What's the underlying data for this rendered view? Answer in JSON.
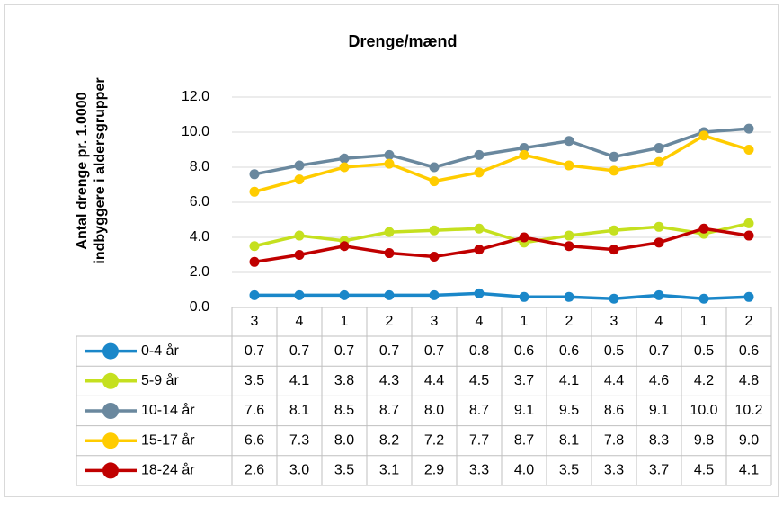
{
  "chart_data": {
    "type": "line",
    "title": "Drenge/mænd",
    "y_label": [
      "Antal drenge pr. 1.0000",
      "indbyggere i aldersgrupper"
    ],
    "categories": [
      "3",
      "4",
      "1",
      "2",
      "3",
      "4",
      "1",
      "2",
      "3",
      "4",
      "1",
      "2"
    ],
    "ylim": [
      0,
      12
    ],
    "yticks": [
      {
        "value": 0,
        "label": "0.0"
      },
      {
        "value": 2,
        "label": "2.0"
      },
      {
        "value": 4,
        "label": "4.0"
      },
      {
        "value": 6,
        "label": "6.0"
      },
      {
        "value": 8,
        "label": "8.0"
      },
      {
        "value": 10,
        "label": "10.0"
      },
      {
        "value": 12,
        "label": "12.0"
      }
    ],
    "grid": true,
    "series": [
      {
        "name": "0-4 år",
        "color": "#1a87c9",
        "values": [
          0.7,
          0.7,
          0.7,
          0.7,
          0.7,
          0.8,
          0.6,
          0.6,
          0.5,
          0.7,
          0.5,
          0.6
        ],
        "value_labels": [
          "0.7",
          "0.7",
          "0.7",
          "0.7",
          "0.7",
          "0.8",
          "0.6",
          "0.6",
          "0.5",
          "0.7",
          "0.5",
          "0.6"
        ]
      },
      {
        "name": "5-9 år",
        "color": "#c5e01f",
        "values": [
          3.5,
          4.1,
          3.8,
          4.3,
          4.4,
          4.5,
          3.7,
          4.1,
          4.4,
          4.6,
          4.2,
          4.8
        ],
        "value_labels": [
          "3.5",
          "4.1",
          "3.8",
          "4.3",
          "4.4",
          "4.5",
          "3.7",
          "4.1",
          "4.4",
          "4.6",
          "4.2",
          "4.8"
        ]
      },
      {
        "name": "10-14 år",
        "color": "#6a889e",
        "values": [
          7.6,
          8.1,
          8.5,
          8.7,
          8.0,
          8.7,
          9.1,
          9.5,
          8.6,
          9.1,
          10.0,
          10.2
        ],
        "value_labels": [
          "7.6",
          "8.1",
          "8.5",
          "8.7",
          "8.0",
          "8.7",
          "9.1",
          "9.5",
          "8.6",
          "9.1",
          "10.0",
          "10.2"
        ]
      },
      {
        "name": "15-17 år",
        "color": "#ffcc00",
        "values": [
          6.6,
          7.3,
          8.0,
          8.2,
          7.2,
          7.7,
          8.7,
          8.1,
          7.8,
          8.3,
          9.8,
          9.0
        ],
        "value_labels": [
          "6.6",
          "7.3",
          "8.0",
          "8.2",
          "7.2",
          "7.7",
          "8.7",
          "8.1",
          "7.8",
          "8.3",
          "9.8",
          "9.0"
        ]
      },
      {
        "name": "18-24 år",
        "color": "#c00000",
        "values": [
          2.6,
          3.0,
          3.5,
          3.1,
          2.9,
          3.3,
          4.0,
          3.5,
          3.3,
          3.7,
          4.5,
          4.1
        ],
        "value_labels": [
          "2.6",
          "3.0",
          "3.5",
          "3.1",
          "2.9",
          "3.3",
          "4.0",
          "3.5",
          "3.3",
          "3.7",
          "4.5",
          "4.1"
        ]
      }
    ]
  }
}
